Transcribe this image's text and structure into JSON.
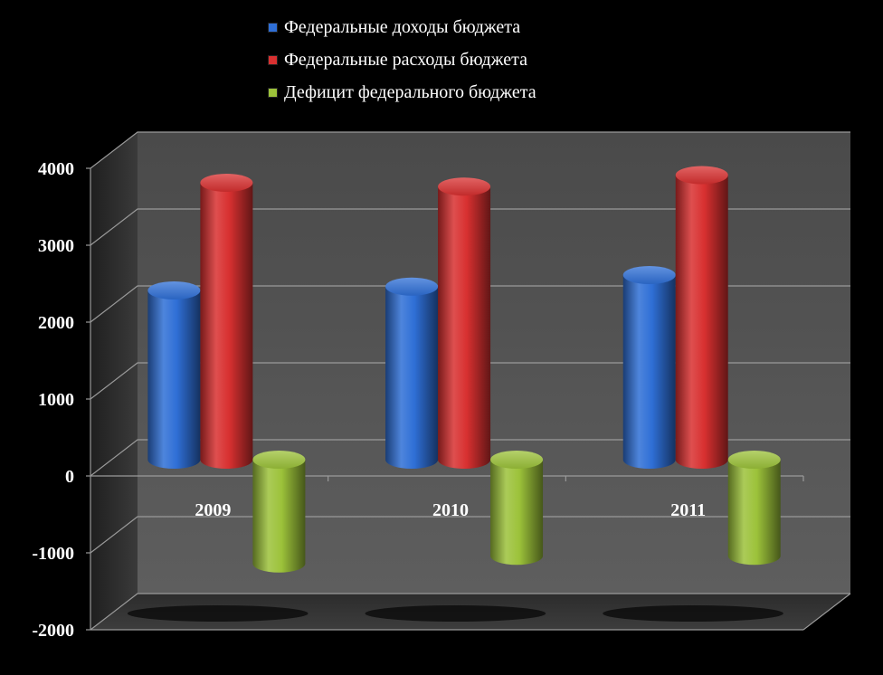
{
  "chart_data": {
    "type": "bar",
    "categories": [
      "2009",
      "2010",
      "2011"
    ],
    "series": [
      {
        "name": "Федеральные доходы бюджета",
        "values": [
          2200,
          2250,
          2400
        ],
        "color": "#2f6fd6"
      },
      {
        "name": "Федеральные расходы бюджета",
        "values": [
          3600,
          3550,
          3700
        ],
        "color": "#d83030"
      },
      {
        "name": "Дефицит федерального бюджета",
        "values": [
          -1350,
          -1250,
          -1250
        ],
        "color": "#9cc23a"
      }
    ],
    "ylim": [
      -2000,
      4000
    ],
    "yticks": [
      "4000",
      "3000",
      "2000",
      "1000",
      "0",
      "-1000",
      "-2000"
    ],
    "grid": true,
    "legend_position": "top",
    "style": "3d-cylinder",
    "title": "",
    "xlabel": "",
    "ylabel": ""
  }
}
